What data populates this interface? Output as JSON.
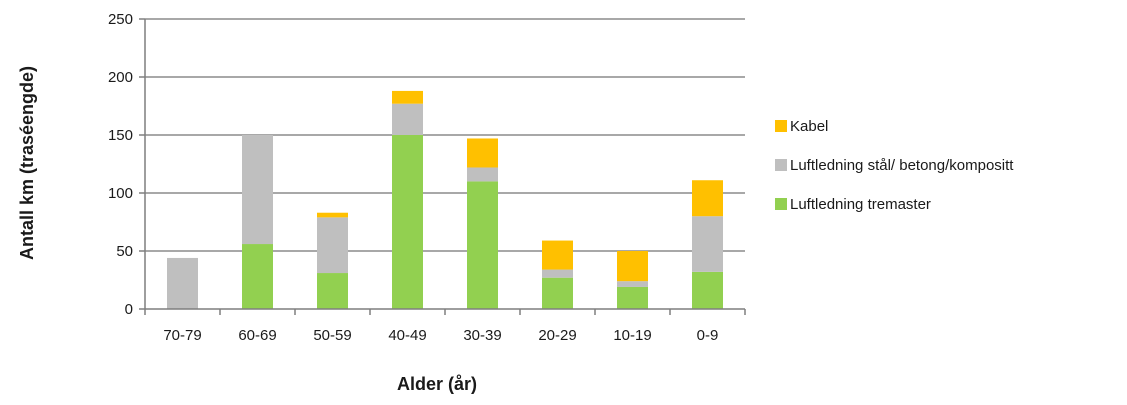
{
  "chart_data": {
    "type": "bar",
    "stacked": true,
    "title": "",
    "xlabel": "Alder (år)",
    "ylabel": "Antall km (traséengde)",
    "ylim": [
      0,
      250
    ],
    "yticks": [
      0,
      50,
      100,
      150,
      200,
      250
    ],
    "grid": "horizontal",
    "legend_position": "right",
    "categories": [
      "70-79",
      "60-69",
      "50-59",
      "40-49",
      "30-39",
      "20-29",
      "10-19",
      "0-9"
    ],
    "series": [
      {
        "name": "Luftledning tremaster",
        "color": "#92d050",
        "values": [
          0,
          56,
          31,
          150,
          110,
          27,
          19,
          32
        ]
      },
      {
        "name": "Luftledning stål/ betong/kompositt",
        "color": "#bfbfbf",
        "values": [
          44,
          94,
          48,
          27,
          12,
          7,
          5,
          48
        ]
      },
      {
        "name": "Kabel",
        "color": "#ffc000",
        "values": [
          0,
          0,
          4,
          11,
          25,
          25,
          26,
          31
        ]
      }
    ],
    "legend_order": [
      "Kabel",
      "Luftledning stål/ betong/kompositt",
      "Luftledning tremaster"
    ]
  }
}
